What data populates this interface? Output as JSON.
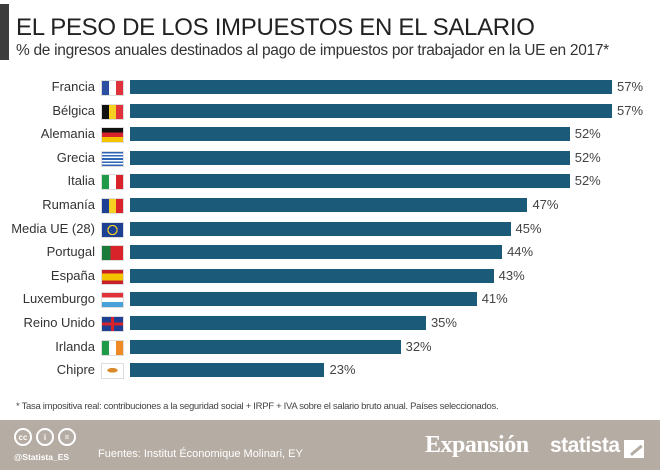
{
  "header": {
    "title": "EL PESO DE LOS IMPUESTOS EN EL SALARIO",
    "subtitle": "% de ingresos anuales destinados al pago de impuestos por trabajador en la UE en 2017*"
  },
  "chart_data": {
    "type": "bar",
    "orientation": "horizontal",
    "categories": [
      "Francia",
      "Bélgica",
      "Alemania",
      "Grecia",
      "Italia",
      "Rumanía",
      "Media UE (28)",
      "Portugal",
      "España",
      "Luxemburgo",
      "Reino Unido",
      "Irlanda",
      "Chipre"
    ],
    "values": [
      57,
      57,
      52,
      52,
      52,
      47,
      45,
      44,
      43,
      41,
      35,
      32,
      23
    ],
    "value_labels": [
      "57%",
      "57%",
      "52%",
      "52%",
      "52%",
      "47%",
      "45%",
      "44%",
      "43%",
      "41%",
      "35%",
      "32%",
      "23%"
    ],
    "flags": [
      "france-flag",
      "belgium-flag",
      "germany-flag",
      "greece-flag",
      "italy-flag",
      "romania-flag",
      "eu-flag",
      "portugal-flag",
      "spain-flag",
      "luxembourg-flag",
      "uk-flag",
      "ireland-flag",
      "cyprus-flag"
    ],
    "bar_color": "#1b5a78",
    "grid": false,
    "xlim": [
      0,
      57
    ]
  },
  "note": "* Tasa impositiva real: contribuciones a la seguridad social + IRPF + IVA sobre el salario bruto anual. Países seleccionados.",
  "footer": {
    "handle": "@Statista_ES",
    "sources": "Fuentes: Institut Économique Molinari, EY",
    "brand1": "Expansión",
    "brand2": "statista",
    "background": "#b5aca3"
  }
}
